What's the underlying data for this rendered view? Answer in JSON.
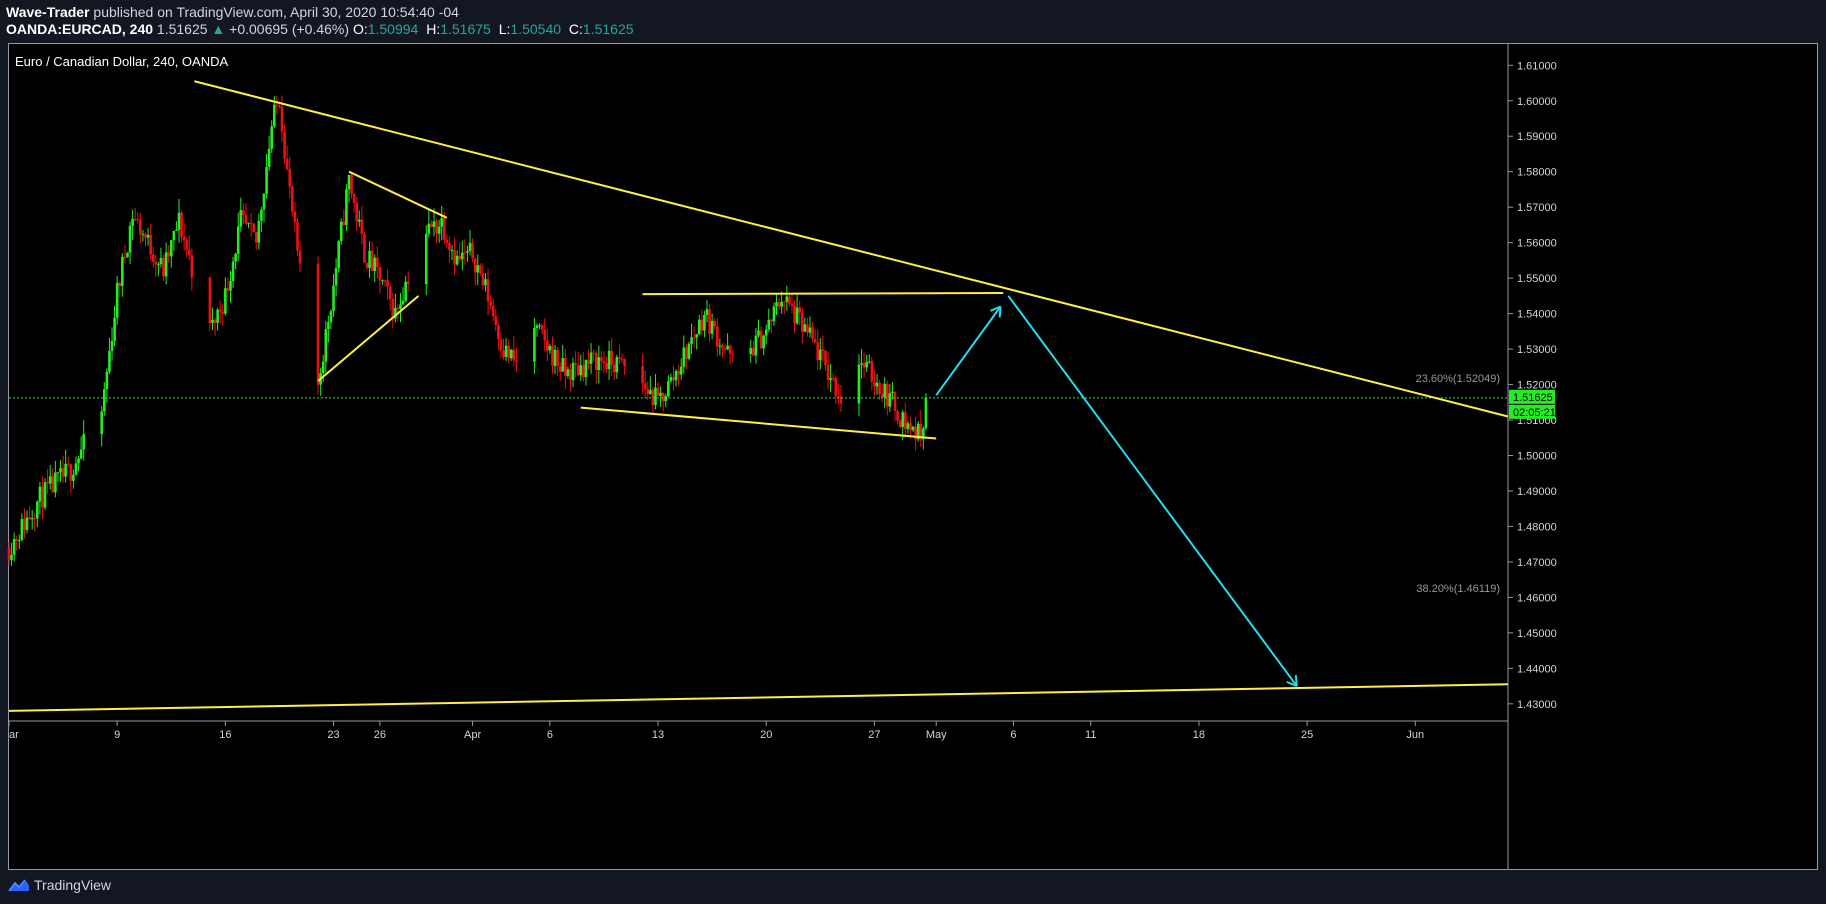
{
  "header": {
    "author": "Wave-Trader",
    "published_text": "published on TradingView.com, April 30, 2020 10:54:40 -04",
    "symbol": "OANDA:EURCAD, 240",
    "last": "1.51625",
    "change_arrow": "▲",
    "change": "+0.00695 (+0.46%)",
    "o_label": "O:",
    "o": "1.50994",
    "h_label": "H:",
    "h": "1.51675",
    "l_label": "L:",
    "l": "1.50540",
    "c_label": "C:",
    "c": "1.51625"
  },
  "footer": {
    "brand": "TradingView",
    "brand_icon": "tradingview-logo-icon"
  },
  "colors": {
    "up": "#22ee22",
    "down": "#ee1111",
    "trendline": "#ffee44",
    "projection": "#22ddee",
    "price_line": "#22ee22",
    "background": "#000000"
  },
  "chart_data": {
    "type": "candlestick",
    "title": "Euro / Canadian Dollar, 240, OANDA",
    "ylim": [
      1.426,
      1.616
    ],
    "y_ticks": [
      "1.61000",
      "1.60000",
      "1.59000",
      "1.58000",
      "1.57000",
      "1.56000",
      "1.55000",
      "1.54000",
      "1.53000",
      "1.52000",
      "1.51000",
      "1.50000",
      "1.49000",
      "1.48000",
      "1.47000",
      "1.46000",
      "1.45000",
      "1.44000",
      "1.43000"
    ],
    "x_domain": [
      "2020-03-02T00:00",
      "2020-06-07T00:00"
    ],
    "x_ticks": [
      {
        "label": "ar",
        "date": "2020-03-02T00:00"
      },
      {
        "label": "9",
        "date": "2020-03-09T00:00"
      },
      {
        "label": "16",
        "date": "2020-03-16T00:00"
      },
      {
        "label": "23",
        "date": "2020-03-23T00:00"
      },
      {
        "label": "26",
        "date": "2020-03-26T00:00"
      },
      {
        "label": "Apr",
        "date": "2020-04-01T00:00"
      },
      {
        "label": "6",
        "date": "2020-04-06T00:00"
      },
      {
        "label": "13",
        "date": "2020-04-13T00:00"
      },
      {
        "label": "20",
        "date": "2020-04-20T00:00"
      },
      {
        "label": "27",
        "date": "2020-04-27T00:00"
      },
      {
        "label": "May",
        "date": "2020-05-01T00:00"
      },
      {
        "label": "6",
        "date": "2020-05-06T00:00"
      },
      {
        "label": "11",
        "date": "2020-05-11T00:00"
      },
      {
        "label": "18",
        "date": "2020-05-18T00:00"
      },
      {
        "label": "25",
        "date": "2020-05-25T00:00"
      },
      {
        "label": "Jun",
        "date": "2020-06-01T00:00"
      }
    ],
    "price_path": [
      [
        "2020-03-02T00:00",
        1.474
      ],
      [
        "2020-03-04T00:00",
        1.488
      ],
      [
        "2020-03-06T00:00",
        1.496
      ],
      [
        "2020-03-08T00:00",
        1.512
      ],
      [
        "2020-03-09T00:00",
        1.546
      ],
      [
        "2020-03-10T00:00",
        1.568
      ],
      [
        "2020-03-12T00:00",
        1.552
      ],
      [
        "2020-03-13T00:00",
        1.566
      ],
      [
        "2020-03-15T00:00",
        1.535
      ],
      [
        "2020-03-16T00:00",
        1.545
      ],
      [
        "2020-03-17T00:00",
        1.566
      ],
      [
        "2020-03-18T00:00",
        1.56
      ],
      [
        "2020-03-19T00:00",
        1.593
      ],
      [
        "2020-03-19T12:00",
        1.601
      ],
      [
        "2020-03-20T00:00",
        1.58
      ],
      [
        "2020-03-21T00:00",
        1.545
      ],
      [
        "2020-03-22T00:00",
        1.52
      ],
      [
        "2020-03-23T00:00",
        1.548
      ],
      [
        "2020-03-24T00:00",
        1.578
      ],
      [
        "2020-03-25T00:00",
        1.557
      ],
      [
        "2020-03-26T00:00",
        1.55
      ],
      [
        "2020-03-27T00:00",
        1.54
      ],
      [
        "2020-03-28T00:00",
        1.553
      ],
      [
        "2020-03-29T00:00",
        1.563
      ],
      [
        "2020-03-30T00:00",
        1.566
      ],
      [
        "2020-03-31T00:00",
        1.555
      ],
      [
        "2020-04-01T00:00",
        1.557
      ],
      [
        "2020-04-02T00:00",
        1.545
      ],
      [
        "2020-04-03T00:00",
        1.53
      ],
      [
        "2020-04-04T00:00",
        1.525
      ],
      [
        "2020-04-05T00:00",
        1.536
      ],
      [
        "2020-04-07T00:00",
        1.523
      ],
      [
        "2020-04-09T00:00",
        1.527
      ],
      [
        "2020-04-11T00:00",
        1.525
      ],
      [
        "2020-04-13T00:00",
        1.515
      ],
      [
        "2020-04-14T00:00",
        1.522
      ],
      [
        "2020-04-16T00:00",
        1.54
      ],
      [
        "2020-04-18T00:00",
        1.525
      ],
      [
        "2020-04-20T00:00",
        1.535
      ],
      [
        "2020-04-21T00:00",
        1.545
      ],
      [
        "2020-04-23T00:00",
        1.532
      ],
      [
        "2020-04-25T00:00",
        1.515
      ],
      [
        "2020-04-26T00:00",
        1.527
      ],
      [
        "2020-04-28T00:00",
        1.516
      ],
      [
        "2020-04-29T00:00",
        1.509
      ],
      [
        "2020-04-30T00:00",
        1.5055
      ],
      [
        "2020-04-30T08:00",
        1.51625
      ]
    ],
    "annotations": {
      "trendlines": [
        {
          "from": [
            "2020-03-14T00:00",
            1.6055
          ],
          "to": [
            "2020-06-07T00:00",
            1.511
          ]
        },
        {
          "from": [
            "2020-03-24T00:00",
            1.58
          ],
          "to": [
            "2020-03-30T08:00",
            1.567
          ]
        },
        {
          "from": [
            "2020-03-22T00:00",
            1.521
          ],
          "to": [
            "2020-03-28T12:00",
            1.545
          ]
        },
        {
          "from": [
            "2020-04-12T00:00",
            1.5455
          ],
          "to": [
            "2020-05-05T08:00",
            1.5458
          ]
        },
        {
          "from": [
            "2020-04-08T00:00",
            1.5135
          ],
          "to": [
            "2020-05-01T00:00",
            1.5048
          ]
        },
        {
          "from": [
            "2020-03-02T00:00",
            1.428
          ],
          "to": [
            "2020-06-07T00:00",
            1.4355
          ]
        }
      ],
      "projection_arrows": [
        {
          "from": [
            "2020-05-01T00:00",
            1.517
          ],
          "to": [
            "2020-05-05T04:00",
            1.542
          ]
        },
        {
          "from": [
            "2020-05-05T16:00",
            1.545
          ],
          "to": [
            "2020-05-24T08:00",
            1.435
          ]
        }
      ],
      "fib_labels": [
        {
          "text": "23.60%(1.52049)",
          "price": 1.52049
        },
        {
          "text": "38.20%(1.46119)",
          "price": 1.46119
        }
      ],
      "last_price_tag": "1.51625",
      "countdown_tag": "02:05:21"
    }
  }
}
